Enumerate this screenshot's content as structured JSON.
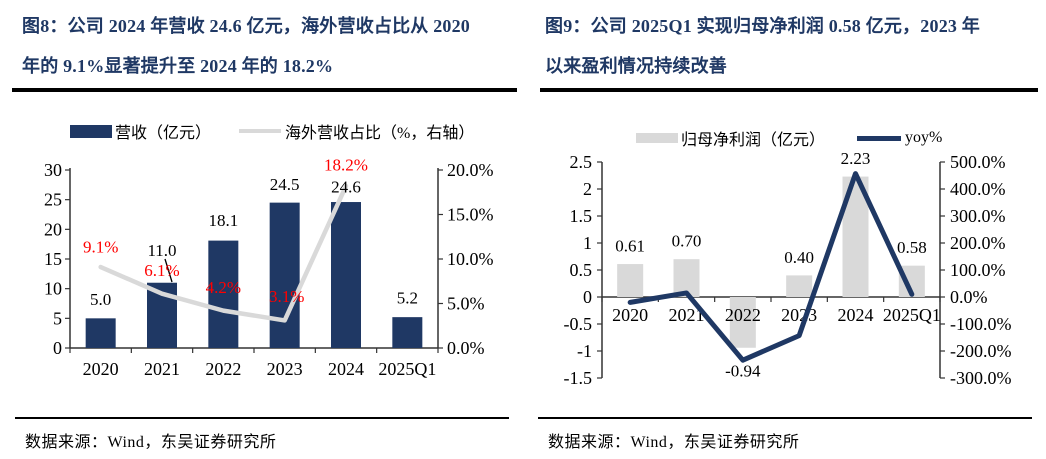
{
  "colors": {
    "navy": "#1f3864",
    "light_gray": "#d9d9d9",
    "red_label": "#ff0000",
    "title_navy": "#1f3864",
    "axis": "#333333",
    "text": "#000000"
  },
  "panels": [
    {
      "fig_id": "图8",
      "title_lines": [
        "图8：公司 2024 年营收 24.6 亿元，海外营收占比从 2020",
        "年的 9.1%显著提升至 2024 年的 18.2%"
      ],
      "legend": [
        {
          "label": "营收（亿元）",
          "swatch": "bar",
          "color": "#1f3864"
        },
        {
          "label": "海外营收占比（%，右轴）",
          "swatch": "line",
          "color": "#d9d9d9"
        }
      ],
      "source": "数据来源：Wind，东吴证券研究所"
    },
    {
      "fig_id": "图9",
      "title_lines": [
        "图9：公司 2025Q1 实现归母净利润 0.58 亿元，2023 年",
        "以来盈利情况持续改善"
      ],
      "legend": [
        {
          "label": "归母净利润（亿元）",
          "swatch": "bar",
          "color": "#d9d9d9"
        },
        {
          "label": "yoy%",
          "swatch": "line",
          "color": "#1f3864"
        }
      ],
      "source": "数据来源：Wind，东吴证券研究所"
    }
  ],
  "chart_data": [
    {
      "type": "bar",
      "title": "公司2024年营收24.6亿元，海外营收占比从2020年的9.1%显著提升至2024年的18.2%",
      "categories": [
        "2020",
        "2021",
        "2022",
        "2023",
        "2024",
        "2025Q1"
      ],
      "series": [
        {
          "name": "营收（亿元）",
          "type": "bar",
          "axis": "left",
          "color": "#1f3864",
          "values": [
            5.0,
            11.0,
            18.1,
            24.5,
            24.6,
            5.2
          ],
          "labels": [
            "5.0",
            "11.0",
            "18.1",
            "24.5",
            "24.6",
            "5.2"
          ]
        },
        {
          "name": "海外营收占比（%，右轴）",
          "type": "line",
          "axis": "right",
          "color": "#d9d9d9",
          "values": [
            9.1,
            6.1,
            4.2,
            3.1,
            18.2,
            null
          ],
          "labels": [
            "9.1%",
            "6.1%",
            "4.2%",
            "3.1%",
            "18.2%"
          ]
        }
      ],
      "left_axis": {
        "min": 0,
        "max": 30,
        "tick_labels": [
          "0",
          "5",
          "10",
          "15",
          "20",
          "25",
          "30"
        ]
      },
      "right_axis": {
        "min": 0,
        "max": 20,
        "tick_labels": [
          "0.0%",
          "5.0%",
          "10.0%",
          "15.0%",
          "20.0%"
        ]
      },
      "legend_position": "top",
      "grid": false
    },
    {
      "type": "bar",
      "title": "公司2025Q1实现归母净利润0.58亿元，2023年以来盈利情况持续改善",
      "categories": [
        "2020",
        "2021",
        "2022",
        "2023",
        "2024",
        "2025Q1"
      ],
      "series": [
        {
          "name": "归母净利润（亿元）",
          "type": "bar",
          "axis": "left",
          "color": "#d9d9d9",
          "values": [
            0.61,
            0.7,
            -0.94,
            0.4,
            2.23,
            0.58
          ],
          "labels": [
            "0.61",
            "0.70",
            "-0.94",
            "0.40",
            "2.23",
            "0.58"
          ]
        },
        {
          "name": "yoy%",
          "type": "line",
          "axis": "right",
          "color": "#1f3864",
          "estimated": true,
          "values": [
            -20,
            15,
            -234,
            -143,
            457,
            10
          ]
        }
      ],
      "left_axis": {
        "min": -1.5,
        "max": 2.5,
        "tick_labels": [
          "2.5",
          "2",
          "1.5",
          "1",
          "0.5",
          "0",
          "-0.5",
          "-1",
          "-1.5"
        ]
      },
      "right_axis": {
        "min": -300,
        "max": 500,
        "tick_labels": [
          "500.0%",
          "400.0%",
          "300.0%",
          "200.0%",
          "100.0%",
          "0.0%",
          "-100.0%",
          "-200.0%",
          "-300.0%"
        ]
      },
      "legend_position": "top",
      "grid": false
    }
  ]
}
